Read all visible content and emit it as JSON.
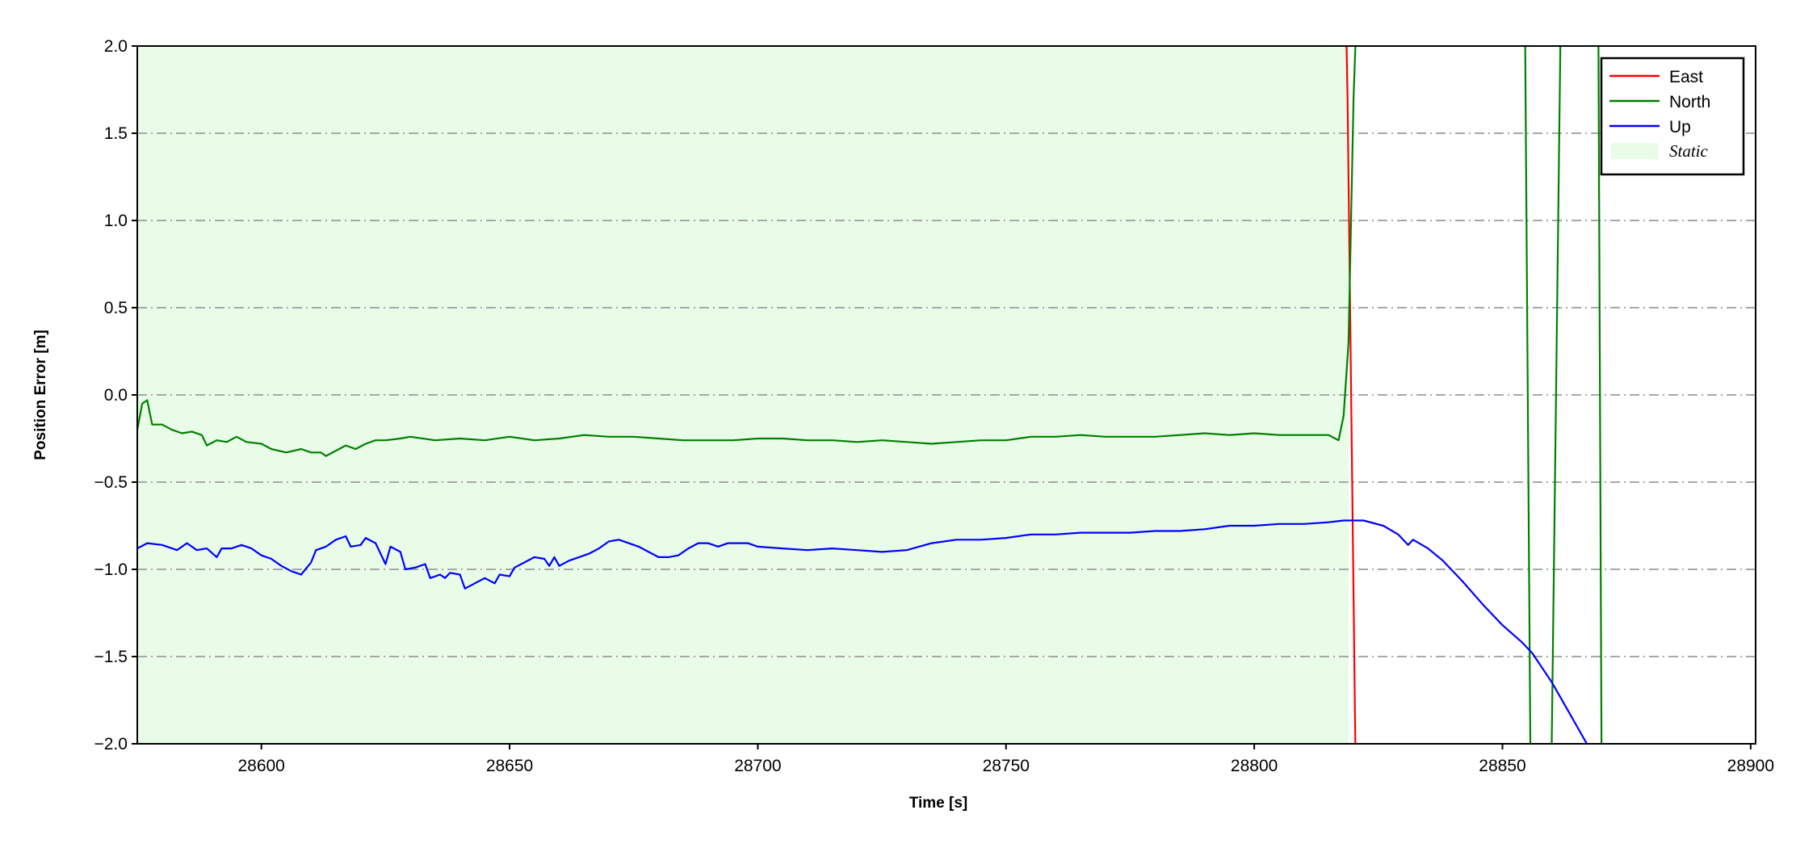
{
  "chart_data": {
    "type": "line",
    "xlabel": "Time [s]",
    "ylabel": "Position Error [m]",
    "xlim": [
      28575,
      28901
    ],
    "ylim": [
      -2.0,
      2.0
    ],
    "xticks": [
      28600,
      28650,
      28700,
      28750,
      28800,
      28850,
      28900
    ],
    "xtick_labels": [
      "28600",
      "28650",
      "28700",
      "28750",
      "28800",
      "28850",
      "28900"
    ],
    "yticks": [
      2.0,
      1.5,
      1.0,
      0.5,
      0.0,
      -0.5,
      -1.0,
      -1.5,
      -2.0
    ],
    "ytick_labels": [
      "2.0",
      "1.5",
      "1.0",
      "0.5",
      "0.0",
      "−0.5",
      "−1.0",
      "−1.5",
      "−2.0"
    ],
    "grid": "horizontal, dash-dot, gray",
    "legend_placement": "top-right",
    "static_region": {
      "label": "Static",
      "x_start": 28575,
      "x_end": 28819,
      "color": "#e8fce8"
    },
    "series": [
      {
        "name": "East",
        "color": "#ff0000",
        "points": [
          [
            28818.4,
            2.3
          ],
          [
            28818.8,
            1.7
          ],
          [
            28820.5,
            -2.3
          ]
        ]
      },
      {
        "name": "North",
        "color": "#008000",
        "points": [
          [
            28575,
            -0.2
          ],
          [
            28576,
            -0.05
          ],
          [
            28577,
            -0.03
          ],
          [
            28578,
            -0.17
          ],
          [
            28580,
            -0.17
          ],
          [
            28582,
            -0.2
          ],
          [
            28584,
            -0.22
          ],
          [
            28586,
            -0.21
          ],
          [
            28588,
            -0.23
          ],
          [
            28589,
            -0.29
          ],
          [
            28591,
            -0.26
          ],
          [
            28593,
            -0.27
          ],
          [
            28595,
            -0.24
          ],
          [
            28597,
            -0.27
          ],
          [
            28600,
            -0.28
          ],
          [
            28602,
            -0.31
          ],
          [
            28605,
            -0.33
          ],
          [
            28608,
            -0.31
          ],
          [
            28610,
            -0.33
          ],
          [
            28612,
            -0.33
          ],
          [
            28613,
            -0.35
          ],
          [
            28615,
            -0.32
          ],
          [
            28617,
            -0.29
          ],
          [
            28619,
            -0.31
          ],
          [
            28621,
            -0.28
          ],
          [
            28623,
            -0.26
          ],
          [
            28625,
            -0.26
          ],
          [
            28628,
            -0.25
          ],
          [
            28630,
            -0.24
          ],
          [
            28635,
            -0.26
          ],
          [
            28640,
            -0.25
          ],
          [
            28645,
            -0.26
          ],
          [
            28650,
            -0.24
          ],
          [
            28655,
            -0.26
          ],
          [
            28660,
            -0.25
          ],
          [
            28665,
            -0.23
          ],
          [
            28670,
            -0.24
          ],
          [
            28675,
            -0.24
          ],
          [
            28680,
            -0.25
          ],
          [
            28685,
            -0.26
          ],
          [
            28690,
            -0.26
          ],
          [
            28695,
            -0.26
          ],
          [
            28700,
            -0.25
          ],
          [
            28705,
            -0.25
          ],
          [
            28710,
            -0.26
          ],
          [
            28715,
            -0.26
          ],
          [
            28720,
            -0.27
          ],
          [
            28725,
            -0.26
          ],
          [
            28730,
            -0.27
          ],
          [
            28735,
            -0.28
          ],
          [
            28740,
            -0.27
          ],
          [
            28745,
            -0.26
          ],
          [
            28750,
            -0.26
          ],
          [
            28755,
            -0.24
          ],
          [
            28760,
            -0.24
          ],
          [
            28765,
            -0.23
          ],
          [
            28770,
            -0.24
          ],
          [
            28775,
            -0.24
          ],
          [
            28780,
            -0.24
          ],
          [
            28785,
            -0.23
          ],
          [
            28790,
            -0.22
          ],
          [
            28795,
            -0.23
          ],
          [
            28800,
            -0.22
          ],
          [
            28805,
            -0.23
          ],
          [
            28810,
            -0.23
          ],
          [
            28815,
            -0.23
          ],
          [
            28817,
            -0.26
          ],
          [
            28818,
            -0.12
          ],
          [
            28819,
            0.3
          ],
          [
            28819.5,
            1.0
          ],
          [
            28820,
            1.7
          ],
          [
            28821,
            2.5
          ],
          [
            28854.5,
            2.3
          ],
          [
            28855.7,
            -2.3
          ],
          [
            28859.8,
            -2.3
          ],
          [
            28861.8,
            2.3
          ],
          [
            28869.3,
            2.3
          ],
          [
            28870,
            -2.3
          ]
        ]
      },
      {
        "name": "Up",
        "color": "#0000ff",
        "points": [
          [
            28575,
            -0.88
          ],
          [
            28577,
            -0.85
          ],
          [
            28580,
            -0.86
          ],
          [
            28583,
            -0.89
          ],
          [
            28585,
            -0.85
          ],
          [
            28587,
            -0.89
          ],
          [
            28589,
            -0.88
          ],
          [
            28591,
            -0.93
          ],
          [
            28592,
            -0.88
          ],
          [
            28594,
            -0.88
          ],
          [
            28596,
            -0.86
          ],
          [
            28598,
            -0.88
          ],
          [
            28600,
            -0.92
          ],
          [
            28602,
            -0.94
          ],
          [
            28604,
            -0.98
          ],
          [
            28606,
            -1.01
          ],
          [
            28608,
            -1.03
          ],
          [
            28610,
            -0.96
          ],
          [
            28611,
            -0.89
          ],
          [
            28613,
            -0.87
          ],
          [
            28615,
            -0.83
          ],
          [
            28617,
            -0.81
          ],
          [
            28618,
            -0.87
          ],
          [
            28620,
            -0.86
          ],
          [
            28621,
            -0.82
          ],
          [
            28623,
            -0.85
          ],
          [
            28625,
            -0.97
          ],
          [
            28626,
            -0.87
          ],
          [
            28628,
            -0.9
          ],
          [
            28629,
            -1.0
          ],
          [
            28631,
            -0.99
          ],
          [
            28633,
            -0.97
          ],
          [
            28634,
            -1.05
          ],
          [
            28636,
            -1.03
          ],
          [
            28637,
            -1.05
          ],
          [
            28638,
            -1.02
          ],
          [
            28640,
            -1.03
          ],
          [
            28641,
            -1.11
          ],
          [
            28643,
            -1.08
          ],
          [
            28645,
            -1.05
          ],
          [
            28647,
            -1.08
          ],
          [
            28648,
            -1.03
          ],
          [
            28650,
            -1.04
          ],
          [
            28651,
            -0.99
          ],
          [
            28653,
            -0.96
          ],
          [
            28655,
            -0.93
          ],
          [
            28657,
            -0.94
          ],
          [
            28658,
            -0.98
          ],
          [
            28659,
            -0.93
          ],
          [
            28660,
            -0.98
          ],
          [
            28662,
            -0.95
          ],
          [
            28664,
            -0.93
          ],
          [
            28666,
            -0.91
          ],
          [
            28668,
            -0.88
          ],
          [
            28670,
            -0.84
          ],
          [
            28672,
            -0.83
          ],
          [
            28674,
            -0.85
          ],
          [
            28676,
            -0.87
          ],
          [
            28678,
            -0.9
          ],
          [
            28680,
            -0.93
          ],
          [
            28682,
            -0.93
          ],
          [
            28684,
            -0.92
          ],
          [
            28686,
            -0.88
          ],
          [
            28688,
            -0.85
          ],
          [
            28690,
            -0.85
          ],
          [
            28692,
            -0.87
          ],
          [
            28694,
            -0.85
          ],
          [
            28696,
            -0.85
          ],
          [
            28698,
            -0.85
          ],
          [
            28700,
            -0.87
          ],
          [
            28705,
            -0.88
          ],
          [
            28710,
            -0.89
          ],
          [
            28715,
            -0.88
          ],
          [
            28720,
            -0.89
          ],
          [
            28725,
            -0.9
          ],
          [
            28730,
            -0.89
          ],
          [
            28735,
            -0.85
          ],
          [
            28740,
            -0.83
          ],
          [
            28745,
            -0.83
          ],
          [
            28750,
            -0.82
          ],
          [
            28755,
            -0.8
          ],
          [
            28760,
            -0.8
          ],
          [
            28765,
            -0.79
          ],
          [
            28770,
            -0.79
          ],
          [
            28775,
            -0.79
          ],
          [
            28780,
            -0.78
          ],
          [
            28785,
            -0.78
          ],
          [
            28790,
            -0.77
          ],
          [
            28795,
            -0.75
          ],
          [
            28800,
            -0.75
          ],
          [
            28805,
            -0.74
          ],
          [
            28810,
            -0.74
          ],
          [
            28815,
            -0.73
          ],
          [
            28818,
            -0.72
          ],
          [
            28822,
            -0.72
          ],
          [
            28826,
            -0.75
          ],
          [
            28829,
            -0.8
          ],
          [
            28831,
            -0.86
          ],
          [
            28832,
            -0.83
          ],
          [
            28835,
            -0.88
          ],
          [
            28838,
            -0.95
          ],
          [
            28842,
            -1.07
          ],
          [
            28846,
            -1.2
          ],
          [
            28850,
            -1.32
          ],
          [
            28854,
            -1.42
          ],
          [
            28856,
            -1.48
          ],
          [
            28860,
            -1.65
          ],
          [
            28864,
            -1.85
          ],
          [
            28867,
            -2.0
          ]
        ]
      }
    ]
  }
}
